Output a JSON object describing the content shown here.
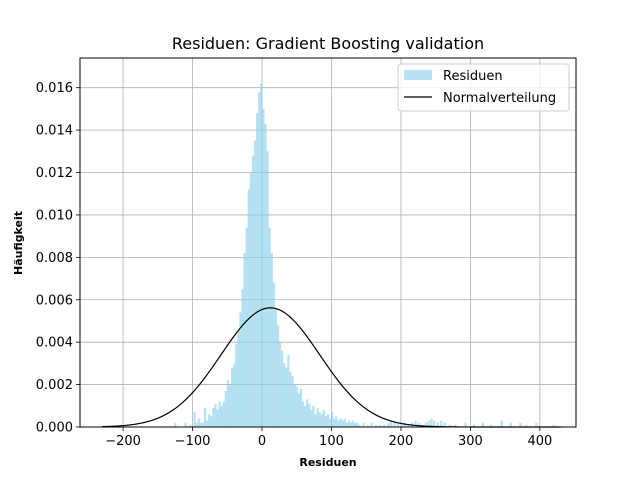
{
  "chart_data": {
    "type": "bar",
    "title": "Residuen: Gradient Boosting validation",
    "xlabel": "Residuen",
    "ylabel": "Häufigkeit",
    "xlim": [
      -262,
      452
    ],
    "ylim": [
      0,
      0.0174
    ],
    "xticks": [
      -200,
      -100,
      0,
      100,
      200,
      300,
      400
    ],
    "yticks": [
      0.0,
      0.002,
      0.004,
      0.006,
      0.008,
      0.01,
      0.012,
      0.014,
      0.016
    ],
    "ytick_labels": [
      "0.000",
      "0.002",
      "0.004",
      "0.006",
      "0.008",
      "0.010",
      "0.012",
      "0.014",
      "0.016"
    ],
    "grid": true,
    "legend_position": "top-right",
    "colors": {
      "histogram": "#87ceeb",
      "normal": "#000000",
      "grid": "#b0b0b0"
    },
    "series": [
      {
        "name": "Residuen",
        "kind": "histogram",
        "bin_width": 3.3,
        "bins": [
          [
            -125,
            0.0002
          ],
          [
            -110,
            0.0002
          ],
          [
            -103,
            0.0001
          ],
          [
            -97,
            0.0007
          ],
          [
            -94,
            0.0002
          ],
          [
            -91,
            0.0004
          ],
          [
            -88,
            0.0002
          ],
          [
            -85,
            0.0002
          ],
          [
            -82,
            0.0009
          ],
          [
            -79,
            0.0003
          ],
          [
            -76,
            0.0006
          ],
          [
            -73,
            0.0005
          ],
          [
            -70,
            0.0009
          ],
          [
            -67,
            0.0011
          ],
          [
            -64,
            0.0008
          ],
          [
            -61,
            0.0012
          ],
          [
            -58,
            0.001
          ],
          [
            -55,
            0.0012
          ],
          [
            -52,
            0.0017
          ],
          [
            -49,
            0.0022
          ],
          [
            -46,
            0.002
          ],
          [
            -43,
            0.0028
          ],
          [
            -40,
            0.003
          ],
          [
            -37,
            0.0039
          ],
          [
            -34,
            0.0045
          ],
          [
            -31,
            0.0054
          ],
          [
            -28,
            0.0065
          ],
          [
            -25,
            0.0082
          ],
          [
            -22,
            0.0094
          ],
          [
            -19,
            0.0112
          ],
          [
            -16,
            0.012
          ],
          [
            -13,
            0.0128
          ],
          [
            -10,
            0.0135
          ],
          [
            -7,
            0.0148
          ],
          [
            -4,
            0.0158
          ],
          [
            -1,
            0.0162
          ],
          [
            2,
            0.015
          ],
          [
            5,
            0.0143
          ],
          [
            8,
            0.013
          ],
          [
            11,
            0.0094
          ],
          [
            14,
            0.0082
          ],
          [
            17,
            0.0068
          ],
          [
            20,
            0.0056
          ],
          [
            23,
            0.0048
          ],
          [
            26,
            0.004
          ],
          [
            29,
            0.0036
          ],
          [
            32,
            0.003
          ],
          [
            35,
            0.0028
          ],
          [
            38,
            0.0034
          ],
          [
            41,
            0.0026
          ],
          [
            44,
            0.0024
          ],
          [
            47,
            0.002
          ],
          [
            50,
            0.0019
          ],
          [
            53,
            0.0016
          ],
          [
            56,
            0.0018
          ],
          [
            59,
            0.0012
          ],
          [
            62,
            0.001
          ],
          [
            65,
            0.0013
          ],
          [
            68,
            0.0011
          ],
          [
            71,
            0.0008
          ],
          [
            74,
            0.001
          ],
          [
            77,
            0.0006
          ],
          [
            80,
            0.0009
          ],
          [
            83,
            0.0007
          ],
          [
            86,
            0.0006
          ],
          [
            89,
            0.0008
          ],
          [
            92,
            0.0005
          ],
          [
            95,
            0.0006
          ],
          [
            98,
            0.0004
          ],
          [
            101,
            0.0007
          ],
          [
            104,
            0.0004
          ],
          [
            107,
            0.0005
          ],
          [
            110,
            0.0003
          ],
          [
            113,
            0.0004
          ],
          [
            116,
            0.0003
          ],
          [
            119,
            0.0004
          ],
          [
            122,
            0.0002
          ],
          [
            125,
            0.0003
          ],
          [
            128,
            0.0002
          ],
          [
            131,
            0.0003
          ],
          [
            134,
            0.0002
          ],
          [
            137,
            0.0002
          ],
          [
            140,
            0.0001
          ],
          [
            146,
            0.0002
          ],
          [
            152,
            0.0001
          ],
          [
            158,
            0.0002
          ],
          [
            164,
            0.0001
          ],
          [
            170,
            0.0001
          ],
          [
            176,
            0.0001
          ],
          [
            182,
            0.0002
          ],
          [
            186,
            0.0003
          ],
          [
            191,
            0.0002
          ],
          [
            196,
            0.0002
          ],
          [
            201,
            0.0002
          ],
          [
            206,
            0.0002
          ],
          [
            211,
            0.0001
          ],
          [
            216,
            0.0002
          ],
          [
            221,
            0.0003
          ],
          [
            226,
            0.0002
          ],
          [
            231,
            0.0001
          ],
          [
            236,
            0.0002
          ],
          [
            240,
            0.0003
          ],
          [
            244,
            0.0004
          ],
          [
            248,
            0.0003
          ],
          [
            253,
            0.0002
          ],
          [
            258,
            0.0003
          ],
          [
            263,
            0.0002
          ],
          [
            270,
            0.0001
          ],
          [
            278,
            0.0001
          ],
          [
            293,
            0.0002
          ],
          [
            305,
            0.0001
          ],
          [
            318,
            0.0002
          ],
          [
            330,
            0.0001
          ],
          [
            345,
            0.0003
          ],
          [
            358,
            0.0002
          ],
          [
            372,
            0.0002
          ],
          [
            380,
            0.0001
          ],
          [
            395,
            0.0002
          ],
          [
            420,
            0.0001
          ]
        ]
      },
      {
        "name": "Normalverteilung",
        "kind": "line",
        "mean": 12,
        "std": 71,
        "x_range": [
          -230,
          430
        ]
      }
    ]
  }
}
